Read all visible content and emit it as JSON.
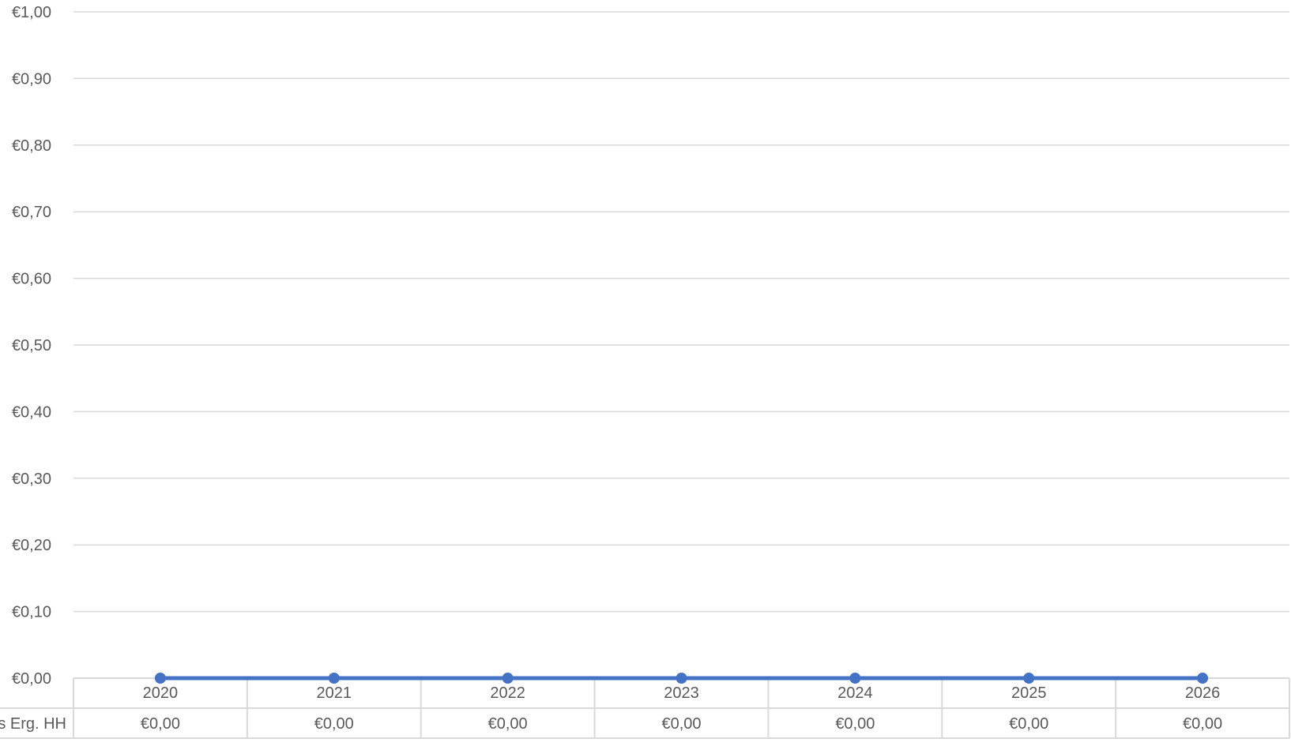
{
  "chart_data": {
    "type": "line",
    "categories": [
      "2020",
      "2021",
      "2022",
      "2023",
      "2024",
      "2025",
      "2026"
    ],
    "y_tick_labels": [
      "€0,00",
      "€0,10",
      "€0,20",
      "€0,30",
      "€0,40",
      "€0,50",
      "€0,60",
      "€0,70",
      "€0,80",
      "€0,90",
      "€1,00"
    ],
    "ylim": [
      0,
      1
    ],
    "grid": true,
    "series": [
      {
        "name": "s Erg. HH",
        "values": [
          0,
          0,
          0,
          0,
          0,
          0,
          0
        ],
        "color": "#4472C4"
      }
    ],
    "data_table": {
      "row_label": "s Erg. HH",
      "cells": [
        "€0,00",
        "€0,00",
        "€0,00",
        "€0,00",
        "€0,00",
        "€0,00",
        "€0,00"
      ]
    }
  }
}
